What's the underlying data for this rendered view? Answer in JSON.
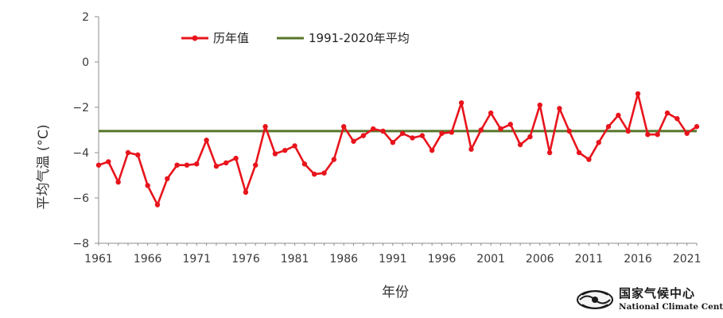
{
  "chart_data": {
    "type": "line",
    "ylabel": "平均气温 (°C)",
    "xlabel": "年份",
    "ylim": [
      -8,
      2
    ],
    "yticks": [
      2,
      0,
      -2,
      -4,
      -6,
      -8
    ],
    "xtick_labels": [
      "1961",
      "1966",
      "1971",
      "1976",
      "1981",
      "1986",
      "1991",
      "1996",
      "2001",
      "2006",
      "2011",
      "2016",
      "2021"
    ],
    "x": [
      1961,
      1962,
      1963,
      1964,
      1965,
      1966,
      1967,
      1968,
      1969,
      1970,
      1971,
      1972,
      1973,
      1974,
      1975,
      1976,
      1977,
      1978,
      1979,
      1980,
      1981,
      1982,
      1983,
      1984,
      1985,
      1986,
      1987,
      1988,
      1989,
      1990,
      1991,
      1992,
      1993,
      1994,
      1995,
      1996,
      1997,
      1998,
      1999,
      2000,
      2001,
      2002,
      2003,
      2004,
      2005,
      2006,
      2007,
      2008,
      2009,
      2010,
      2011,
      2012,
      2013,
      2014,
      2015,
      2016,
      2017,
      2018,
      2019,
      2020,
      2021,
      2022
    ],
    "series": [
      {
        "name": "历年值",
        "color": "#e8141c",
        "values": [
          -4.55,
          -4.4,
          -5.3,
          -4.0,
          -4.1,
          -5.45,
          -6.3,
          -5.15,
          -4.55,
          -4.55,
          -4.5,
          -3.45,
          -4.6,
          -4.45,
          -4.25,
          -5.75,
          -4.55,
          -2.85,
          -4.05,
          -3.9,
          -3.7,
          -4.5,
          -4.95,
          -4.9,
          -4.3,
          -2.85,
          -3.5,
          -3.25,
          -2.95,
          -3.05,
          -3.55,
          -3.15,
          -3.35,
          -3.25,
          -3.9,
          -3.15,
          -3.1,
          -1.8,
          -3.85,
          -3.0,
          -2.25,
          -2.95,
          -2.75,
          -3.65,
          -3.3,
          -1.9,
          -4.0,
          -2.05,
          -3.05,
          -4.0,
          -4.3,
          -3.55,
          -2.85,
          -2.35,
          -3.05,
          -1.4,
          -3.2,
          -3.2,
          -2.25,
          -2.5,
          -3.15,
          -2.85
        ]
      },
      {
        "name": "1991-2020年平均",
        "color": "#58762b",
        "values": [
          -3.05,
          -3.05
        ],
        "x": [
          1961,
          2022
        ]
      }
    ],
    "legend": "top-left",
    "grid": false
  },
  "logo": {
    "cn": "国家气候中心",
    "en": "National Climate Center"
  }
}
